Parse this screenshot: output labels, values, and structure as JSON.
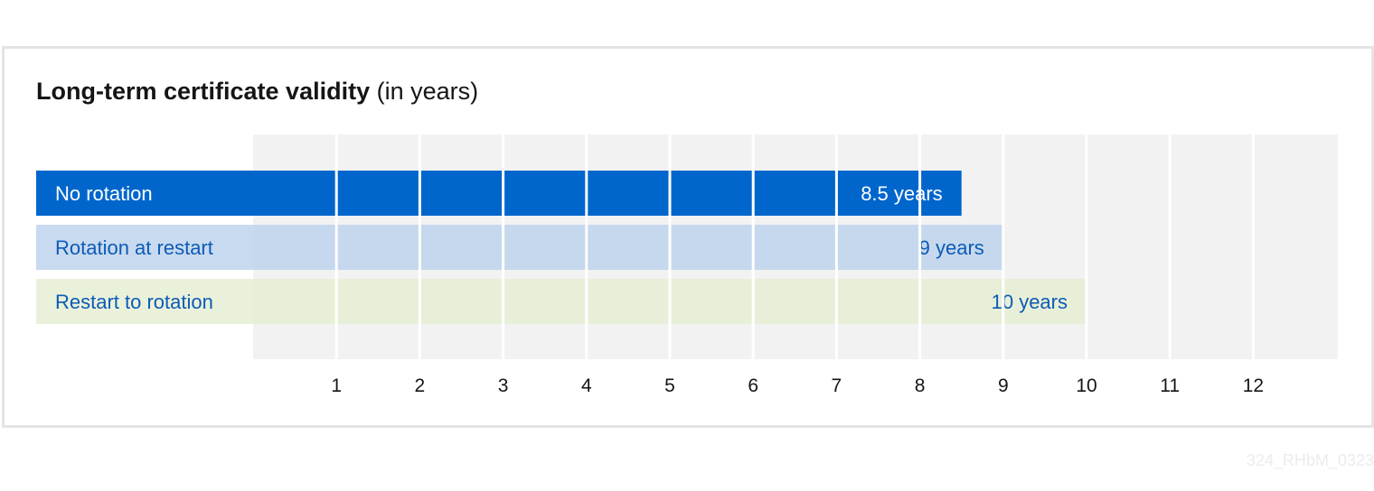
{
  "chart_data": {
    "type": "bar",
    "orientation": "horizontal",
    "title": "Long-term certificate validity",
    "subtitle": "(in years)",
    "categories": [
      "No rotation",
      "Rotation at restart",
      "Restart to rotation"
    ],
    "values": [
      8.5,
      9,
      10
    ],
    "value_labels": [
      "8.5 years",
      "9 years",
      "10 years"
    ],
    "bar_colors": [
      "#0066cc",
      "#bed4ec",
      "#e6efd3"
    ],
    "label_colors": [
      "#ffffff",
      "#0b5bb6",
      "#0b5bb6"
    ],
    "x_ticks": [
      "1",
      "2",
      "3",
      "4",
      "5",
      "6",
      "7",
      "8",
      "9",
      "10",
      "11",
      "12"
    ],
    "xlim": [
      0,
      13
    ],
    "grid": true,
    "legend": "none"
  },
  "watermark": "324_RHbM_0323",
  "colors": {
    "grid_background": "#f2f2f2",
    "grid_lines": "#ffffff",
    "card_border": "#e4e4e4",
    "text": "#151515"
  }
}
